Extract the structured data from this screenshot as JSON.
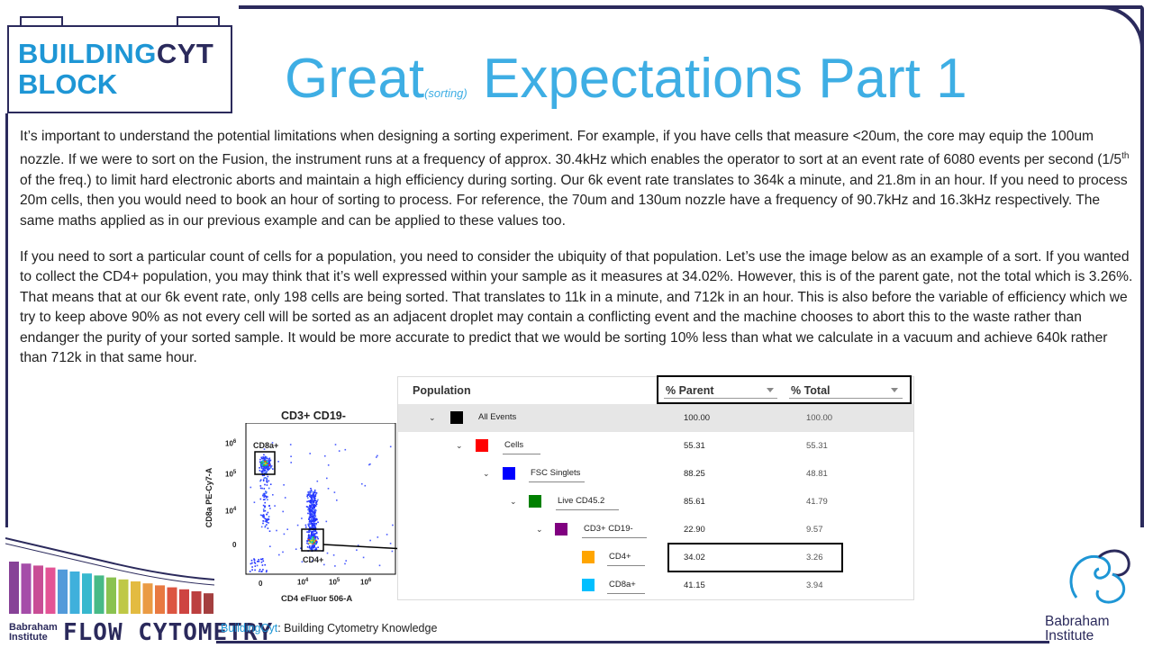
{
  "logo": {
    "line1_a": "BUILDING",
    "line1_b": "CYT",
    "line2": "BLOCK"
  },
  "title": {
    "before": "Great",
    "small": "(sorting)",
    "after": " Expectations Part 1"
  },
  "paragraphs": {
    "p1_a": "It’s important to understand the potential limitations when designing a sorting experiment. For example, if you have cells that measure <20um, the core may equip the 100um nozzle. If we were to sort on the Fusion, the instrument runs at a frequency of approx. 30.4kHz which enables the operator to sort at an event rate of 6080 events per second (1/5",
    "p1_sup": "th",
    "p1_b": " of the freq.) to limit hard electronic aborts and maintain a high efficiency during sorting. Our 6k event rate translates to 364k a minute, and 21.8m in an hour. If you need to process 20m cells, then you would need to book an hour of sorting to process. For reference, the 70um and 130um nozzle have a frequency of 90.7kHz and 16.3kHz respectively. The same maths applied as in our previous example and can be applied to these values too.",
    "p2": "If you need to sort a particular count of cells for a population, you need to consider the ubiquity of that population. Let’s use the image below as an example of a sort. If you wanted to collect the CD4+ population, you may think that it’s well expressed within your sample as it measures at 34.02%. However, this is of the parent gate, not the total which is 3.26%. That means that at our 6k event rate, only 198 cells are being sorted. That translates to 11k in a minute, and 712k in an hour. This is also before the variable of efficiency which we try to keep above 90% as not every cell will be sorted as an adjacent droplet may contain a conflicting event and the machine chooses to abort this to the waste rather than endanger the purity of your sorted sample. It would be more accurate to predict that we would be sorting 10% less than what we calculate in a vacuum and achieve 640k rather than 712k in that same hour."
  },
  "plot": {
    "title": "CD3+ CD19-",
    "ylabel": "CD8a PE-Cy7-A",
    "xlabel": "CD4 eFluor 506-A",
    "yticks": [
      "10",
      "10",
      "10",
      "0"
    ],
    "yexp": [
      "6",
      "5",
      "4",
      ""
    ],
    "xticks": [
      "0",
      "10",
      "10",
      "10"
    ],
    "xexp": [
      "",
      "4",
      "5",
      "6"
    ],
    "gate_cd8": "CD8a+",
    "gate_cd4": "CD4+"
  },
  "table": {
    "col_population": "Population",
    "col_parent": "% Parent",
    "col_total": "% Total",
    "rows": [
      {
        "name": "All Events",
        "parent": "100.00",
        "total": "100.00",
        "color": "#000000"
      },
      {
        "name": "Cells",
        "parent": "55.31",
        "total": "55.31",
        "color": "#ff0000"
      },
      {
        "name": "FSC Singlets",
        "parent": "88.25",
        "total": "48.81",
        "color": "#0000ff"
      },
      {
        "name": "Live CD45.2",
        "parent": "85.61",
        "total": "41.79",
        "color": "#008000"
      },
      {
        "name": "CD3+ CD19-",
        "parent": "22.90",
        "total": "9.57",
        "color": "#800080"
      },
      {
        "name": "CD4+",
        "parent": "34.02",
        "total": "3.26",
        "color": "#ffa500"
      },
      {
        "name": "CD8a+",
        "parent": "41.15",
        "total": "3.94",
        "color": "#00bfff"
      }
    ]
  },
  "footer": {
    "brand": "BuildingCyt",
    "tagline": ": Building Cytometry  Knowledge",
    "flow": "FLOW CYTOMETRY",
    "bab_left_1": "Babraham",
    "bab_left_2": "Institute",
    "bab_right_1": "Babraham",
    "bab_right_2": "Institute"
  }
}
